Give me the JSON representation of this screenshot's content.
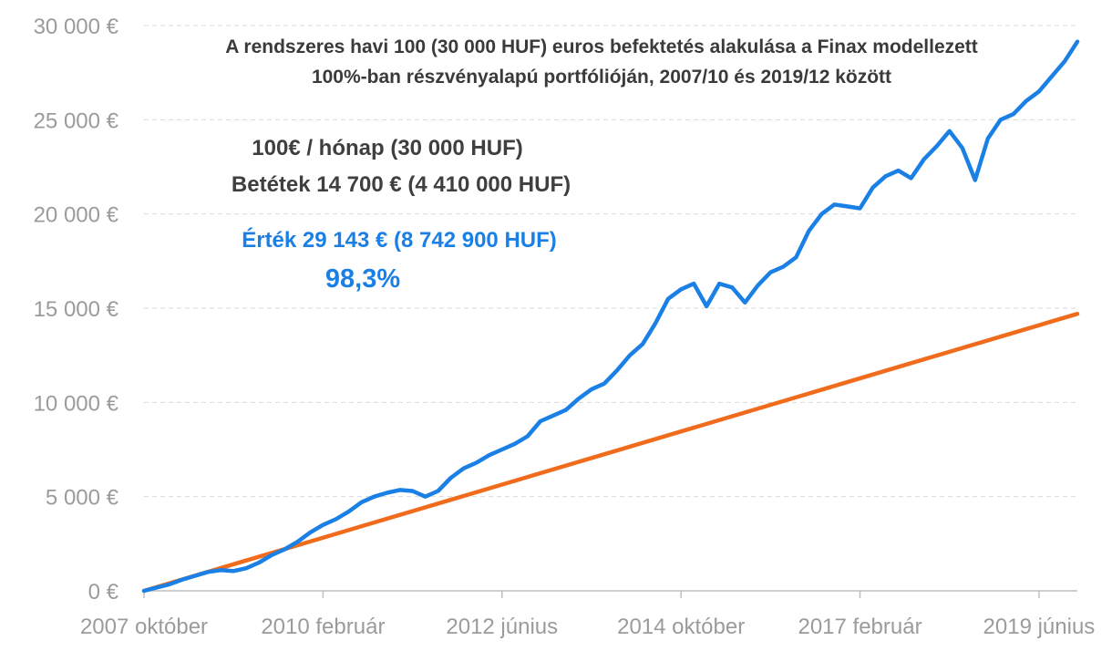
{
  "chart_data": {
    "type": "line",
    "title": "A rendszeres havi 100 (30 000 HUF) euros befektetés alakulása a Finax modellezett\n100%-ban részvényalapú portfólióján, 2007/10 és 2019/12 között",
    "annotations": [
      "100€ / hónap (30 000 HUF)",
      "Betétek 14 700 € (4 410 000 HUF)",
      "Érték 29 143 € (8 742 900 HUF)",
      "98,3%"
    ],
    "ylim": [
      0,
      30000
    ],
    "y_ticks": [
      0,
      5000,
      10000,
      15000,
      20000,
      25000,
      30000
    ],
    "y_tick_labels": [
      "0 €",
      "5 000 €",
      "10 000 €",
      "15 000 €",
      "20 000 €",
      "25 000 €",
      "30 000 €"
    ],
    "x_ticks": [
      "2007 október",
      "2010 február",
      "2012 június",
      "2014 október",
      "2017 február",
      "2019 június"
    ],
    "x_tick_months": [
      0,
      28,
      56,
      84,
      112,
      140
    ],
    "x_range_months": [
      0,
      146
    ],
    "grid": true,
    "series": [
      {
        "color": "#1a80e6",
        "x_months": [
          0,
          4,
          6,
          8,
          10,
          12,
          14,
          16,
          18,
          20,
          22,
          24,
          26,
          28,
          30,
          32,
          34,
          36,
          38,
          40,
          42,
          44,
          46,
          48,
          50,
          52,
          54,
          56,
          58,
          60,
          62,
          64,
          66,
          68,
          70,
          72,
          74,
          76,
          78,
          80,
          82,
          84,
          86,
          88,
          90,
          92,
          94,
          96,
          98,
          100,
          102,
          104,
          106,
          108,
          110,
          112,
          114,
          116,
          118,
          120,
          122,
          124,
          126,
          128,
          130,
          132,
          134,
          136,
          138,
          140,
          142,
          144,
          146
        ],
        "values": [
          0,
          350,
          600,
          800,
          1000,
          1100,
          1050,
          1200,
          1500,
          1900,
          2200,
          2600,
          3100,
          3500,
          3800,
          4200,
          4700,
          5000,
          5200,
          5350,
          5300,
          5000,
          5300,
          6000,
          6500,
          6800,
          7200,
          7500,
          7800,
          8200,
          9000,
          9300,
          9600,
          10200,
          10700,
          11000,
          11700,
          12500,
          13100,
          14200,
          15500,
          16000,
          16300,
          15100,
          16300,
          16100,
          15300,
          16200,
          16900,
          17200,
          17700,
          19100,
          20000,
          20500,
          20400,
          20300,
          21400,
          22000,
          22300,
          21900,
          22900,
          23600,
          24400,
          23500,
          21800,
          24000,
          25000,
          25300,
          26000,
          26500,
          27300,
          28100,
          29143
        ]
      },
      {
        "color": "#f06c1c",
        "x_months": [
          0,
          146
        ],
        "values": [
          0,
          14700
        ]
      }
    ]
  }
}
